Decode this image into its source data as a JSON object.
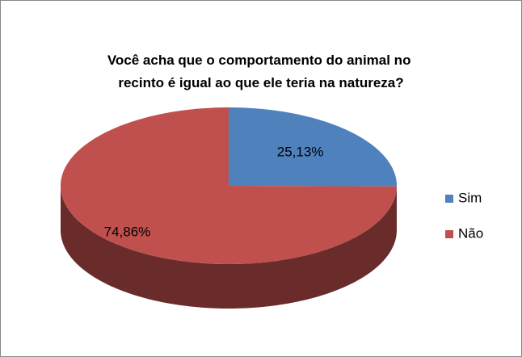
{
  "chart_data": {
    "type": "pie",
    "title": [
      "Você acha que o comportamento do animal no",
      "recinto é igual ao que ele teria na natureza?"
    ],
    "categories": [
      "Sim",
      "Não"
    ],
    "values": [
      25.13,
      74.86
    ],
    "value_labels": [
      "25,13%",
      "74,86%"
    ],
    "colors": [
      "#4f81bd",
      "#c0504d"
    ],
    "legend": "right"
  }
}
